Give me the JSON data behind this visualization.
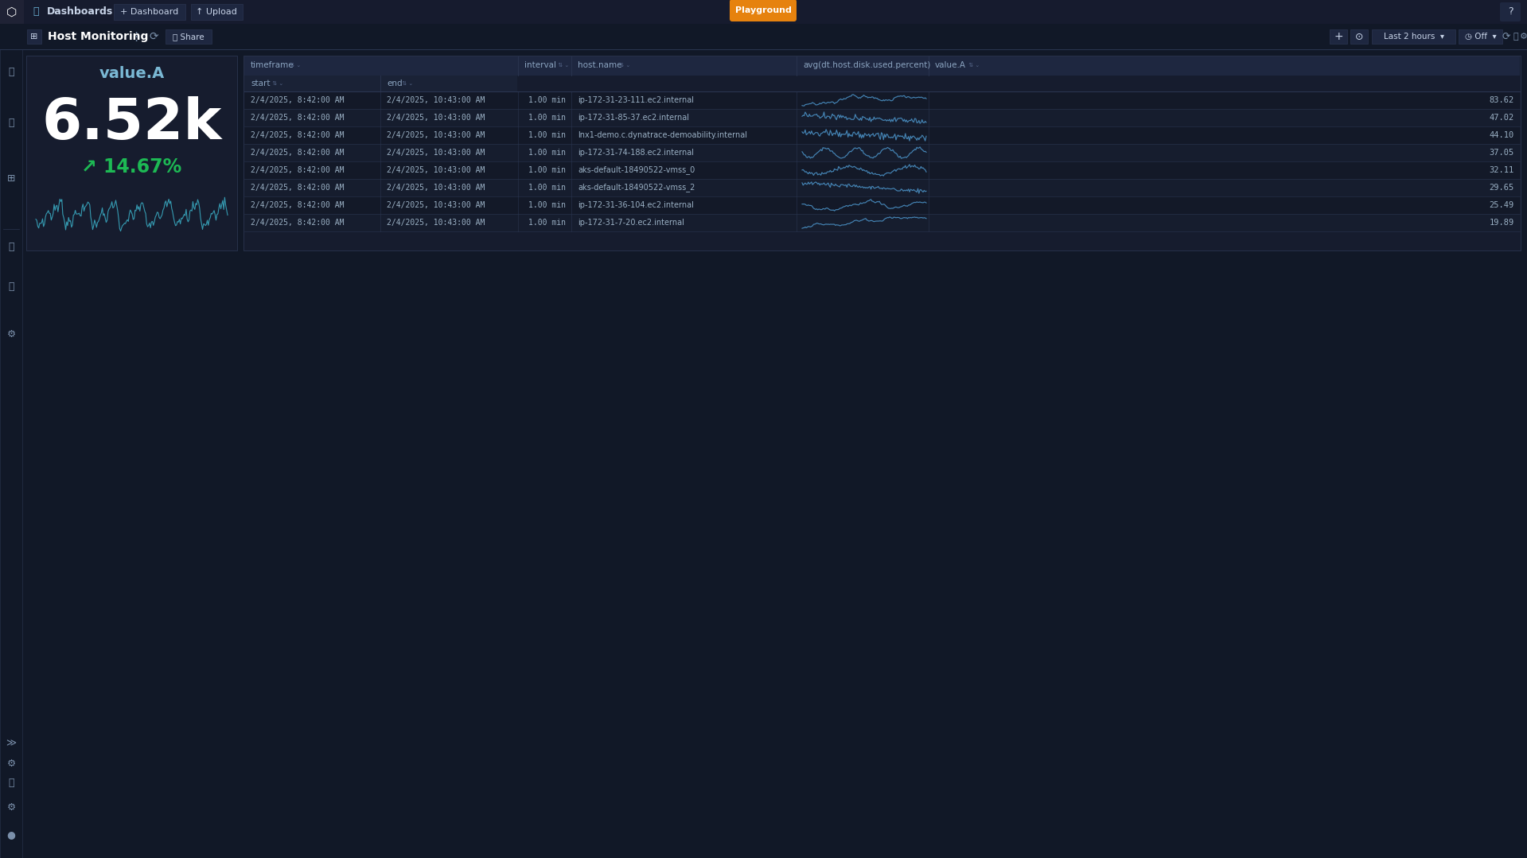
{
  "bg_color": "#111827",
  "top_bar_bg": "#161b2e",
  "sidebar_bg": "#111827",
  "card_bg": "#161c2e",
  "table_panel_bg": "#141926",
  "header_row_bg": "#1e2740",
  "subheader_row_bg": "#1a2236",
  "odd_row_bg": "#131928",
  "even_row_bg": "#161d2e",
  "border_color": "#2a3550",
  "text_color": "#c8d4e8",
  "dim_text": "#7a8faa",
  "cyan_color": "#4da6c8",
  "teal_color": "#39a9c0",
  "green_color": "#1db954",
  "value_text": "value.A",
  "big_value": "6.52k",
  "pct_change": "↗ 14.67%",
  "rows": [
    {
      "start": "2/4/2025, 8:42:00 AM",
      "end": "2/4/2025, 10:43:00 AM",
      "interval": "1.00 min",
      "host": "ip-172-31-23-111.ec2.internal",
      "value": 83.62
    },
    {
      "start": "2/4/2025, 8:42:00 AM",
      "end": "2/4/2025, 10:43:00 AM",
      "interval": "1.00 min",
      "host": "ip-172-31-85-37.ec2.internal",
      "value": 47.02
    },
    {
      "start": "2/4/2025, 8:42:00 AM",
      "end": "2/4/2025, 10:43:00 AM",
      "interval": "1.00 min",
      "host": "lnx1-demo.c.dynatrace-demoability.internal",
      "value": 44.1
    },
    {
      "start": "2/4/2025, 8:42:00 AM",
      "end": "2/4/2025, 10:43:00 AM",
      "interval": "1.00 min",
      "host": "ip-172-31-74-188.ec2.internal",
      "value": 37.05
    },
    {
      "start": "2/4/2025, 8:42:00 AM",
      "end": "2/4/2025, 10:43:00 AM",
      "interval": "1.00 min",
      "host": "aks-default-18490522-vmss_0",
      "value": 32.11
    },
    {
      "start": "2/4/2025, 8:42:00 AM",
      "end": "2/4/2025, 10:43:00 AM",
      "interval": "1.00 min",
      "host": "aks-default-18490522-vmss_2",
      "value": 29.65
    },
    {
      "start": "2/4/2025, 8:42:00 AM",
      "end": "2/4/2025, 10:43:00 AM",
      "interval": "1.00 min",
      "host": "ip-172-31-36-104.ec2.internal",
      "value": 25.49
    },
    {
      "start": "2/4/2025, 8:42:00 AM",
      "end": "2/4/2025, 10:43:00 AM",
      "interval": "1.00 min",
      "host": "ip-172-31-7-20.ec2.internal",
      "value": 19.89
    }
  ],
  "sparkline_color": "#4a90c4",
  "accent_yellow": "#f5a623",
  "nav_bg": "#161b2e"
}
